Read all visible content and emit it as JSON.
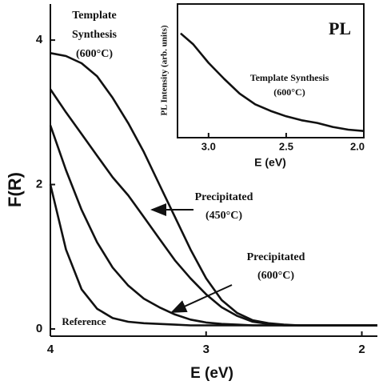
{
  "chart_data": [
    {
      "type": "line",
      "y_label": "F(R)",
      "x_label": "E (eV)",
      "x": [
        4.0,
        3.9,
        3.8,
        3.7,
        3.6,
        3.5,
        3.4,
        3.3,
        3.2,
        3.1,
        3.0,
        2.9,
        2.8,
        2.7,
        2.6,
        2.5,
        2.4,
        2.3,
        2.2,
        2.1,
        2.0,
        1.9
      ],
      "xlim": [
        4.0,
        1.9
      ],
      "xticks": [
        4,
        3,
        2
      ],
      "ylim": [
        -0.1,
        4.5
      ],
      "yticks": [
        0,
        2,
        4
      ],
      "series": [
        {
          "color": "#111111",
          "values": [
            3.82,
            3.78,
            3.68,
            3.5,
            3.2,
            2.85,
            2.45,
            2.0,
            1.55,
            1.1,
            0.7,
            0.4,
            0.22,
            0.12,
            0.08,
            0.06,
            0.05,
            0.05,
            0.05,
            0.05,
            0.05,
            0.05
          ]
        },
        {
          "color": "#111111",
          "values": [
            3.32,
            3.0,
            2.7,
            2.4,
            2.1,
            1.85,
            1.55,
            1.25,
            0.95,
            0.7,
            0.48,
            0.3,
            0.18,
            0.1,
            0.07,
            0.05,
            0.05,
            0.05,
            0.05,
            0.05,
            0.05,
            0.05
          ]
        },
        {
          "color": "#111111",
          "values": [
            2.82,
            2.2,
            1.65,
            1.2,
            0.85,
            0.6,
            0.42,
            0.3,
            0.2,
            0.13,
            0.09,
            0.07,
            0.06,
            0.05,
            0.05,
            0.05,
            0.05,
            0.05,
            0.05,
            0.05,
            0.05,
            0.05
          ]
        },
        {
          "color": "#111111",
          "values": [
            2.0,
            1.1,
            0.55,
            0.28,
            0.15,
            0.1,
            0.08,
            0.07,
            0.06,
            0.05,
            0.05,
            0.05,
            0.05,
            0.05,
            0.05,
            0.05,
            0.05,
            0.05,
            0.05,
            0.05,
            0.05,
            0.05
          ]
        }
      ],
      "annotations": [
        {
          "lines": [
            "Template",
            "Synthesis",
            "(600°C)"
          ]
        },
        {
          "lines": [
            "Precipitated",
            "(450°C)"
          ]
        },
        {
          "lines": [
            "Precipitated",
            "(600°C)"
          ]
        },
        {
          "lines": [
            "Reference"
          ]
        }
      ]
    },
    {
      "type": "line",
      "title": "PL",
      "y_label": "PL Intensity (arb. units)",
      "x_label": "E (eV)",
      "x": [
        3.18,
        3.1,
        3.0,
        2.9,
        2.8,
        2.7,
        2.6,
        2.5,
        2.4,
        2.3,
        2.2,
        2.1,
        2.0
      ],
      "xlim": [
        3.2,
        2.0
      ],
      "xticks": [
        {
          "value": 3.0,
          "label": "3.0"
        },
        {
          "value": 2.5,
          "label": "2.5"
        },
        {
          "value": 2.0,
          "label": "2.0"
        }
      ],
      "ylim": [
        0,
        1
      ],
      "series": [
        {
          "color": "#111111",
          "values": [
            0.78,
            0.7,
            0.56,
            0.44,
            0.33,
            0.25,
            0.2,
            0.16,
            0.13,
            0.11,
            0.08,
            0.06,
            0.05
          ]
        }
      ],
      "annotations": [
        {
          "lines": [
            "Template Synthesis",
            "(600°C)"
          ]
        }
      ]
    }
  ]
}
